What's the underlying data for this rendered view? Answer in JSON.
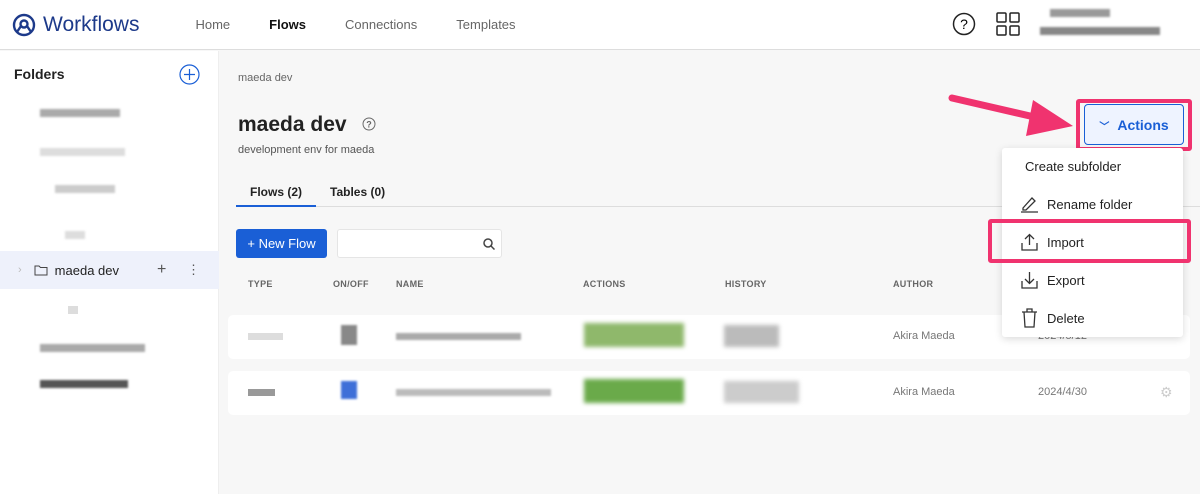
{
  "app": {
    "title": "Workflows",
    "nav": [
      "Home",
      "Flows",
      "Connections",
      "Templates"
    ],
    "active_nav": "Flows"
  },
  "sidebar": {
    "heading": "Folders",
    "selected": "maeda dev"
  },
  "main": {
    "breadcrumb": "maeda dev",
    "title": "maeda dev",
    "description": "development env for maeda",
    "tabs": [
      "Flows (2)",
      "Tables (0)"
    ],
    "new_flow": "+ New Flow",
    "search_placeholder": "",
    "columns": [
      "TYPE",
      "ON/OFF",
      "NAME",
      "ACTIONS",
      "HISTORY",
      "AUTHOR"
    ],
    "rows": [
      {
        "author": "Akira Maeda",
        "date": "2024/5/12"
      },
      {
        "author": "Akira Maeda",
        "date": "2024/4/30"
      }
    ]
  },
  "actions": {
    "label": "Actions",
    "menu": [
      "Create subfolder",
      "Rename folder",
      "Import",
      "Export",
      "Delete"
    ]
  },
  "colors": {
    "accent": "#1a5fd6",
    "highlight": "#f0336f"
  }
}
